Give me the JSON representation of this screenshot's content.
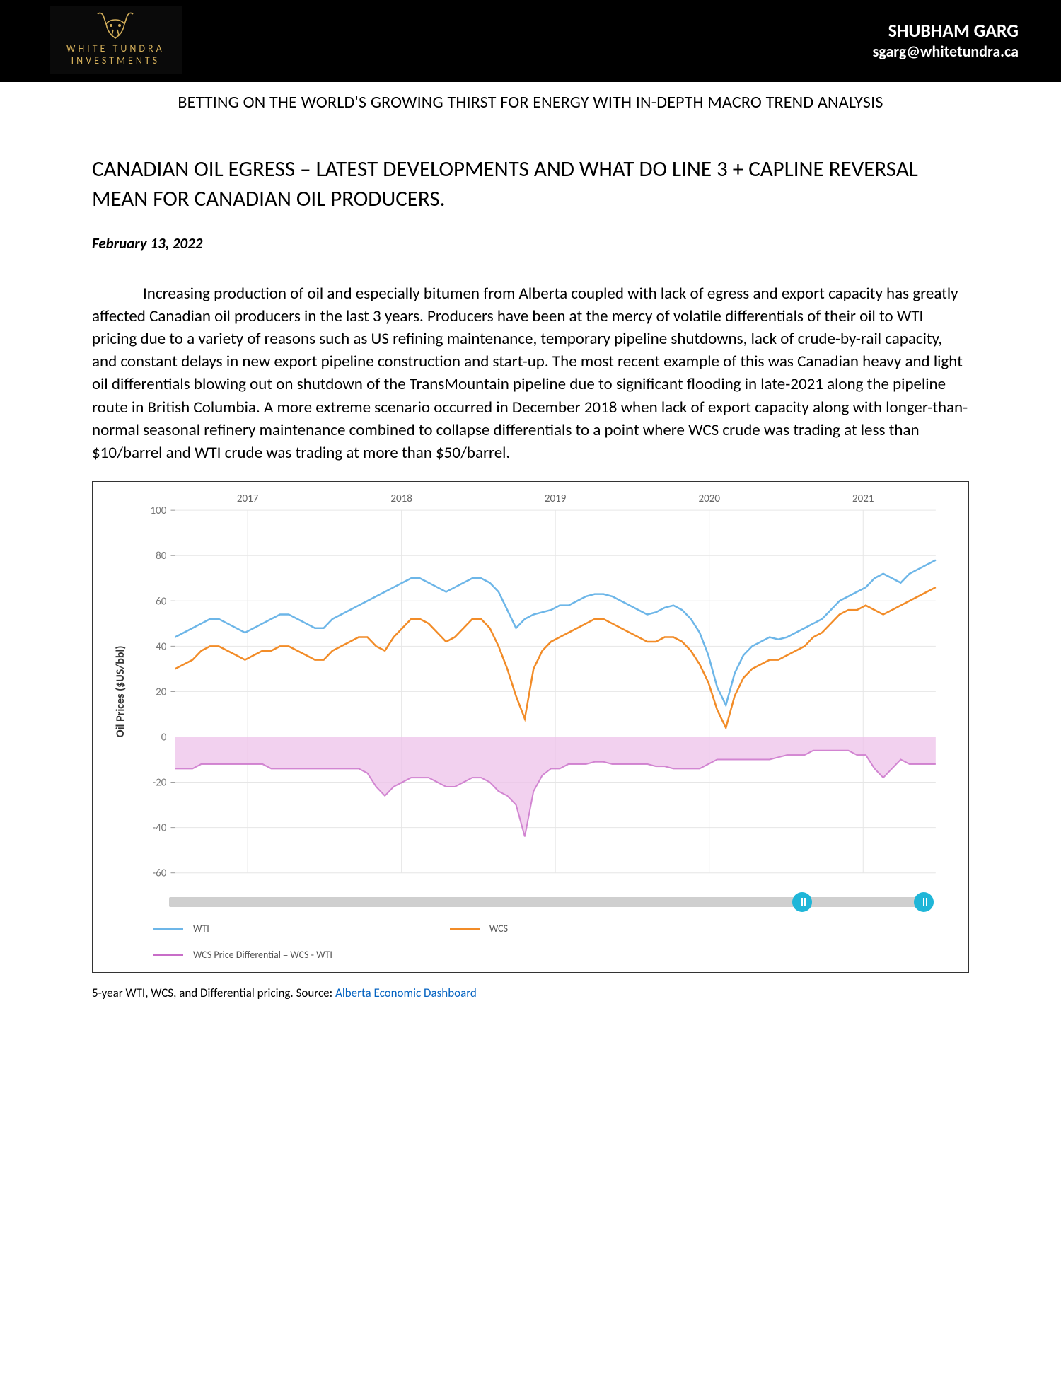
{
  "header": {
    "brand_line1": "WHITE TUNDRA",
    "brand_line2": "INVESTMENTS",
    "logo_color": "#d4af5a",
    "author_name": "SHUBHAM GARG",
    "author_email": "sgarg@whitetundra.ca",
    "bg_color": "#000000",
    "text_color": "#ffffff"
  },
  "tagline": "BETTING ON THE WORLD'S GROWING THIRST FOR ENERGY WITH IN-DEPTH MACRO TREND ANALYSIS",
  "article": {
    "title": "CANADIAN OIL EGRESS – LATEST DEVELOPMENTS AND WHAT DO LINE 3 + CAPLINE REVERSAL MEAN FOR CANADIAN OIL PRODUCERS.",
    "date": "February 13, 2022",
    "body": "Increasing production of oil and especially bitumen from Alberta coupled with lack of egress and export capacity has greatly affected Canadian oil producers in the last 3 years. Producers have been at the mercy of volatile differentials of their oil to WTI pricing due to a variety of reasons such as US refining maintenance, temporary pipeline shutdowns, lack of crude-by-rail capacity, and constant delays in new export pipeline construction and start-up. The most recent example of this was Canadian heavy and light oil differentials blowing out on shutdown of the TransMountain pipeline due to significant flooding in late-2021 along the pipeline route in British Columbia. A more extreme scenario occurred in December 2018 when lack of export capacity along with longer-than-normal seasonal refinery maintenance combined to collapse differentials to a point where WCS crude was trading at less than $10/barrel and WTI crude was trading at more than $50/barrel."
  },
  "chart": {
    "type": "line",
    "y_label": "Oil Prices ($US/bbl)",
    "years": [
      "2017",
      "2018",
      "2019",
      "2020",
      "2021"
    ],
    "ylim": [
      -60,
      100
    ],
    "ytick_step": 20,
    "yticks": [
      -60,
      -40,
      -20,
      0,
      20,
      40,
      60,
      80,
      100
    ],
    "background_color": "#ffffff",
    "grid_color": "#e6e6e6",
    "differential_fill": "#eec2ea",
    "differential_fill_opacity": 0.75,
    "slider_track_color": "#cfcfcf",
    "slider_handle_color": "#1fb6d8",
    "slider_handle_positions_pct": [
      82,
      98
    ],
    "series": {
      "wti": {
        "label": "WTI",
        "color": "#6db6e8",
        "stroke_width": 2.5,
        "data": [
          44,
          46,
          48,
          50,
          52,
          52,
          50,
          48,
          46,
          48,
          50,
          52,
          54,
          54,
          52,
          50,
          48,
          48,
          52,
          54,
          56,
          58,
          60,
          62,
          64,
          66,
          68,
          70,
          70,
          68,
          66,
          64,
          66,
          68,
          70,
          70,
          68,
          64,
          56,
          48,
          52,
          54,
          55,
          56,
          58,
          58,
          60,
          62,
          63,
          63,
          62,
          60,
          58,
          56,
          54,
          55,
          57,
          58,
          56,
          52,
          46,
          36,
          22,
          14,
          28,
          36,
          40,
          42,
          44,
          43,
          44,
          46,
          48,
          50,
          52,
          56,
          60,
          62,
          64,
          66,
          70,
          72,
          70,
          68,
          72,
          74,
          76,
          78
        ]
      },
      "wcs": {
        "label": "WCS",
        "color": "#f28c28",
        "stroke_width": 2.5,
        "data": [
          30,
          32,
          34,
          38,
          40,
          40,
          38,
          36,
          34,
          36,
          38,
          38,
          40,
          40,
          38,
          36,
          34,
          34,
          38,
          40,
          42,
          44,
          44,
          40,
          38,
          44,
          48,
          52,
          52,
          50,
          46,
          42,
          44,
          48,
          52,
          52,
          48,
          40,
          30,
          18,
          8,
          30,
          38,
          42,
          44,
          46,
          48,
          50,
          52,
          52,
          50,
          48,
          46,
          44,
          42,
          42,
          44,
          44,
          42,
          38,
          32,
          24,
          12,
          4,
          18,
          26,
          30,
          32,
          34,
          34,
          36,
          38,
          40,
          44,
          46,
          50,
          54,
          56,
          56,
          58,
          56,
          54,
          56,
          58,
          60,
          62,
          64,
          66
        ]
      },
      "differential": {
        "label": "WCS Price Differential = WCS - WTI",
        "color": "#c86dc8",
        "stroke_width": 2,
        "data": [
          -14,
          -14,
          -14,
          -12,
          -12,
          -12,
          -12,
          -12,
          -12,
          -12,
          -12,
          -14,
          -14,
          -14,
          -14,
          -14,
          -14,
          -14,
          -14,
          -14,
          -14,
          -14,
          -16,
          -22,
          -26,
          -22,
          -20,
          -18,
          -18,
          -18,
          -20,
          -22,
          -22,
          -20,
          -18,
          -18,
          -20,
          -24,
          -26,
          -30,
          -44,
          -24,
          -17,
          -14,
          -14,
          -12,
          -12,
          -12,
          -11,
          -11,
          -12,
          -12,
          -12,
          -12,
          -12,
          -13,
          -13,
          -14,
          -14,
          -14,
          -14,
          -12,
          -10,
          -10,
          -10,
          -10,
          -10,
          -10,
          -10,
          -9,
          -8,
          -8,
          -8,
          -6,
          -6,
          -6,
          -6,
          -6,
          -8,
          -8,
          -14,
          -18,
          -14,
          -10,
          -12,
          -12,
          -12,
          -12
        ]
      }
    },
    "legend": {
      "wti": "WTI",
      "wcs": "WCS",
      "diff": "WCS Price Differential = WCS - WTI"
    }
  },
  "caption": {
    "text_prefix": "5-year WTI, WCS, and Differential pricing. Source: ",
    "link_text": "Alberta Economic Dashboard",
    "link_color": "#0563c1"
  }
}
